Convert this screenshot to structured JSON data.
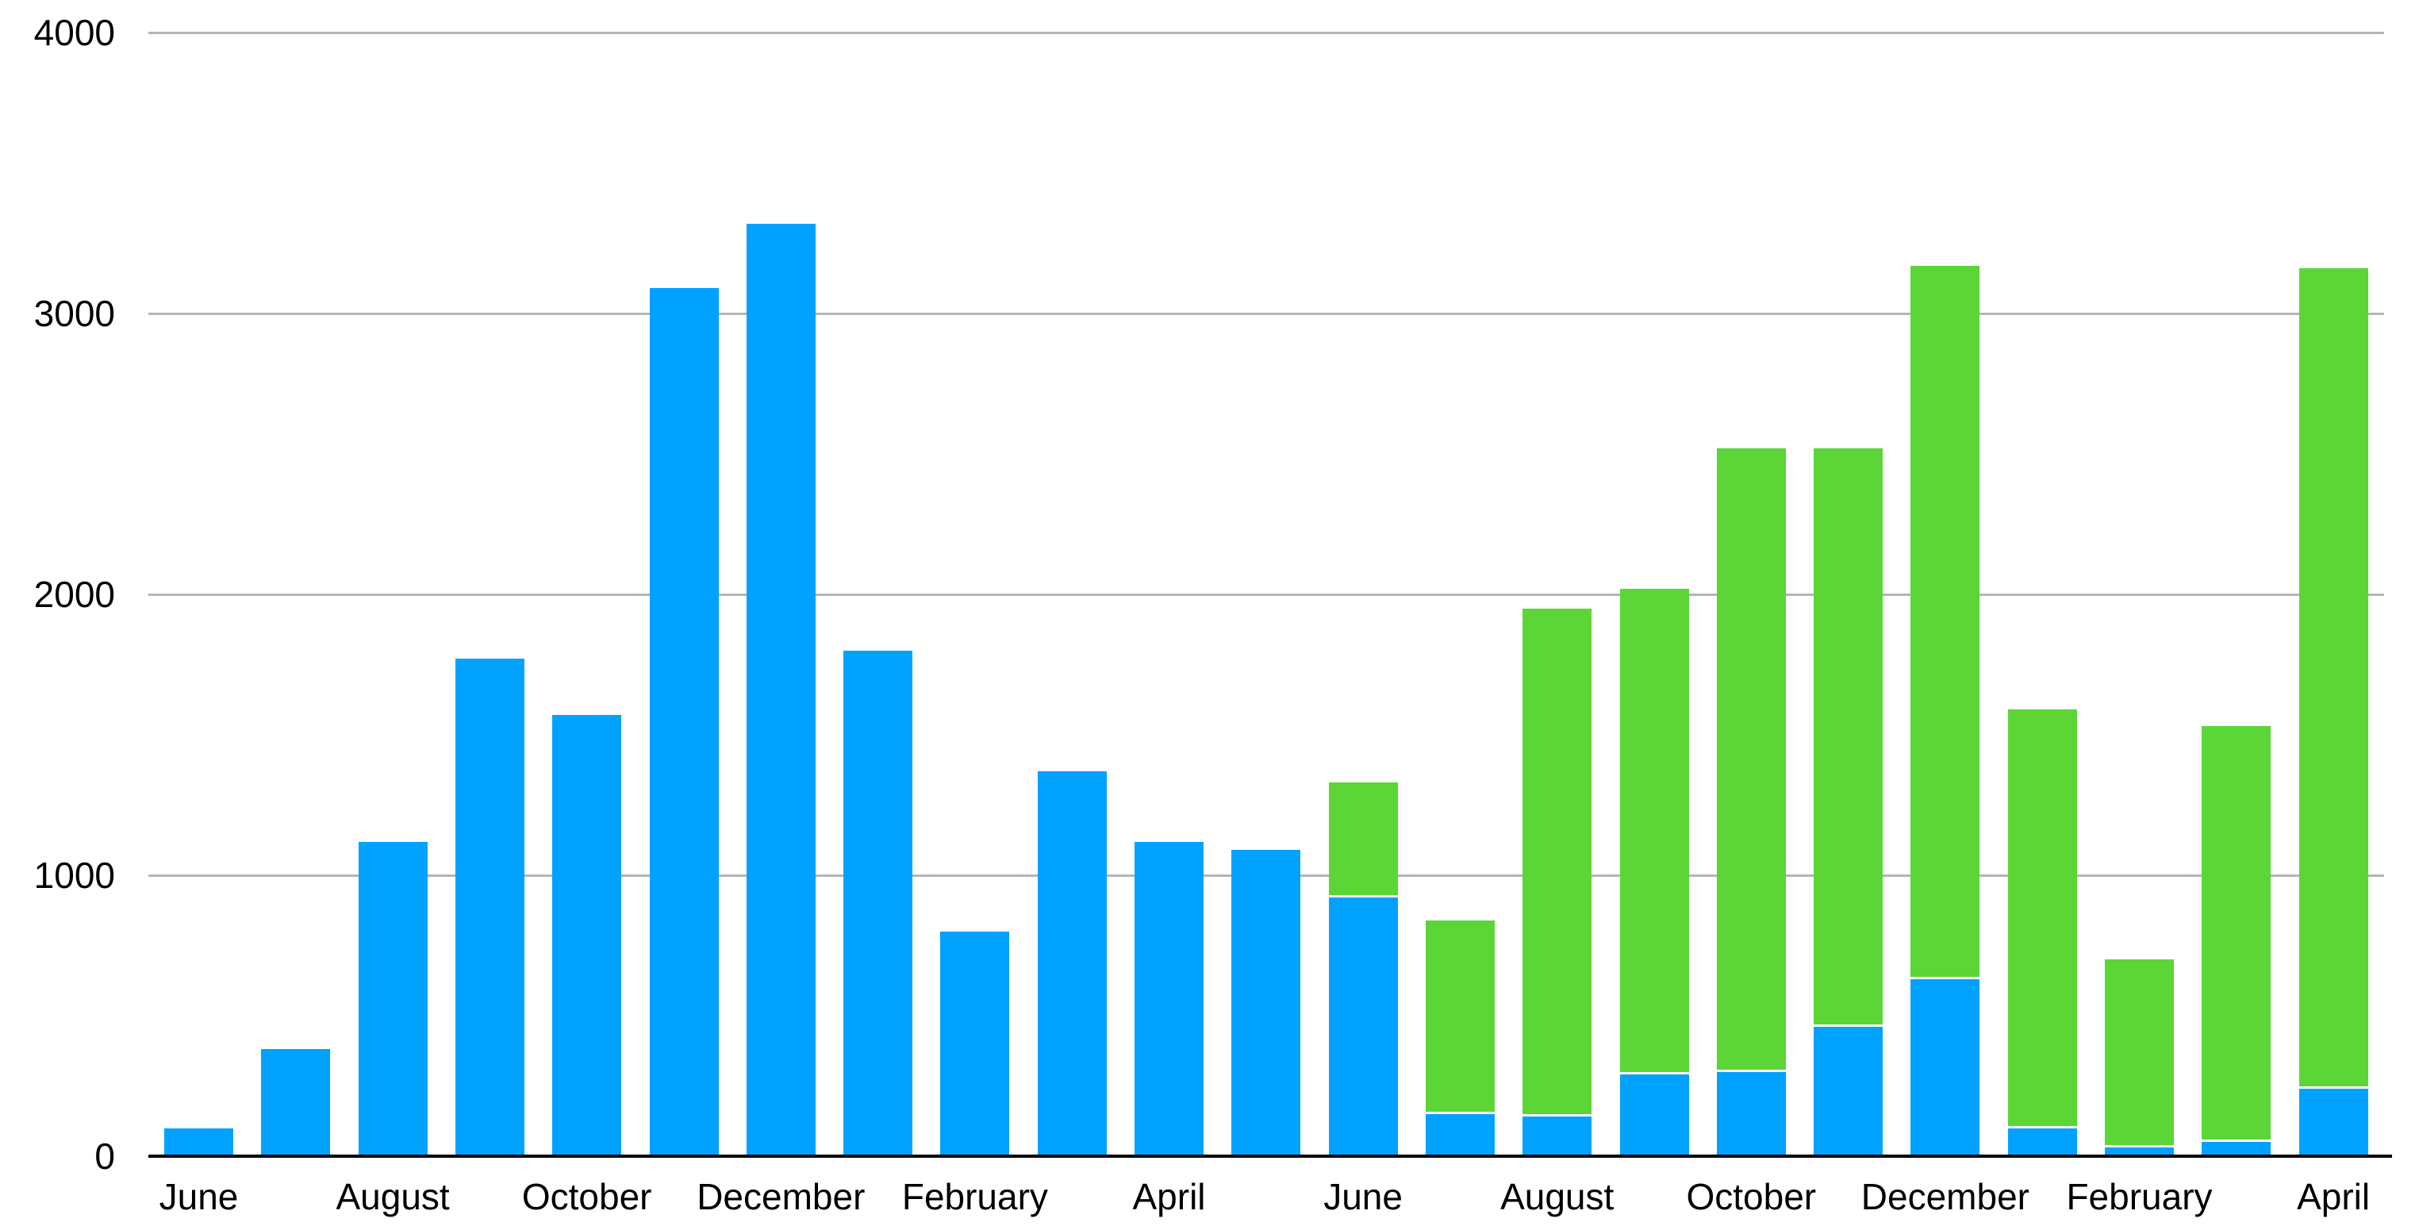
{
  "chart_data": {
    "type": "bar",
    "stacked": true,
    "title": "",
    "xlabel": "",
    "ylabel": "",
    "ylim": [
      0,
      4000
    ],
    "y_tick_step": 1000,
    "grid": true,
    "legend_position": "none",
    "y_tick_labels": [
      "0",
      "1000",
      "2000",
      "3000",
      "4000"
    ],
    "x_tick_labels": [
      "June",
      "August",
      "October",
      "December",
      "February",
      "April",
      "June",
      "August",
      "October",
      "December",
      "February",
      "April"
    ],
    "x_tick_label_every_other_bar_starting_at_first": true,
    "bar_count": 23,
    "series": [
      {
        "name": "blue",
        "color": "#00a2ff",
        "values": [
          100,
          380,
          1120,
          1770,
          1570,
          3090,
          3320,
          1800,
          800,
          1370,
          1120,
          1090,
          920,
          150,
          140,
          290,
          300,
          460,
          630,
          100,
          30,
          50,
          240
        ]
      },
      {
        "name": "green",
        "color": "#5bd636",
        "values": [
          0,
          0,
          0,
          0,
          0,
          0,
          0,
          0,
          0,
          0,
          0,
          0,
          410,
          690,
          1810,
          1730,
          2220,
          2060,
          2540,
          1490,
          670,
          1480,
          2920
        ]
      }
    ],
    "stacked_totals": [
      100,
      380,
      1120,
      1770,
      1570,
      3090,
      3320,
      1800,
      800,
      1370,
      1120,
      1090,
      1330,
      840,
      1950,
      2020,
      2520,
      2520,
      3170,
      1590,
      700,
      1530,
      3160
    ]
  },
  "colors": {
    "background": "#ffffff",
    "gridline": "#b5b5b5",
    "axis": "#000000",
    "blue_series": "#00a2ff",
    "green_series": "#5bd636",
    "tick_label": "#000000"
  }
}
